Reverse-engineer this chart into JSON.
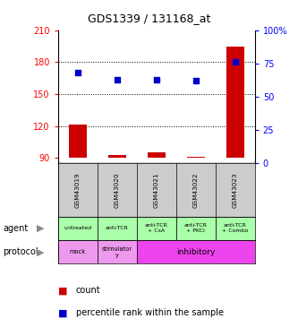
{
  "title": "GDS1339 / 131168_at",
  "samples": [
    "GSM43019",
    "GSM43020",
    "GSM43021",
    "GSM43022",
    "GSM43023"
  ],
  "count_values": [
    121,
    93,
    95,
    91,
    195
  ],
  "percentile_values": [
    68,
    63,
    63,
    62,
    76
  ],
  "ylim_left": [
    85,
    210
  ],
  "ylim_right": [
    0,
    100
  ],
  "yticks_left": [
    90,
    120,
    150,
    180,
    210
  ],
  "yticks_right": [
    0,
    25,
    50,
    75,
    100
  ],
  "bar_color": "#cc0000",
  "dot_color": "#0000cc",
  "agent_labels": [
    "untreated",
    "anti-TCR",
    "anti-TCR\n+ CsA",
    "anti-TCR\n+ PKCi",
    "anti-TCR\n+ Combo"
  ],
  "agent_bg": "#aaffaa",
  "sample_bg": "#cccccc",
  "background_color": "#ffffff",
  "protocol_configs": [
    [
      0,
      1,
      "mock",
      "#ee99ee"
    ],
    [
      1,
      2,
      "stimulator\ny",
      "#ee99ee"
    ],
    [
      2,
      5,
      "inhibitory",
      "#ee44ee"
    ]
  ],
  "dotted_lines": [
    120,
    150,
    180
  ]
}
